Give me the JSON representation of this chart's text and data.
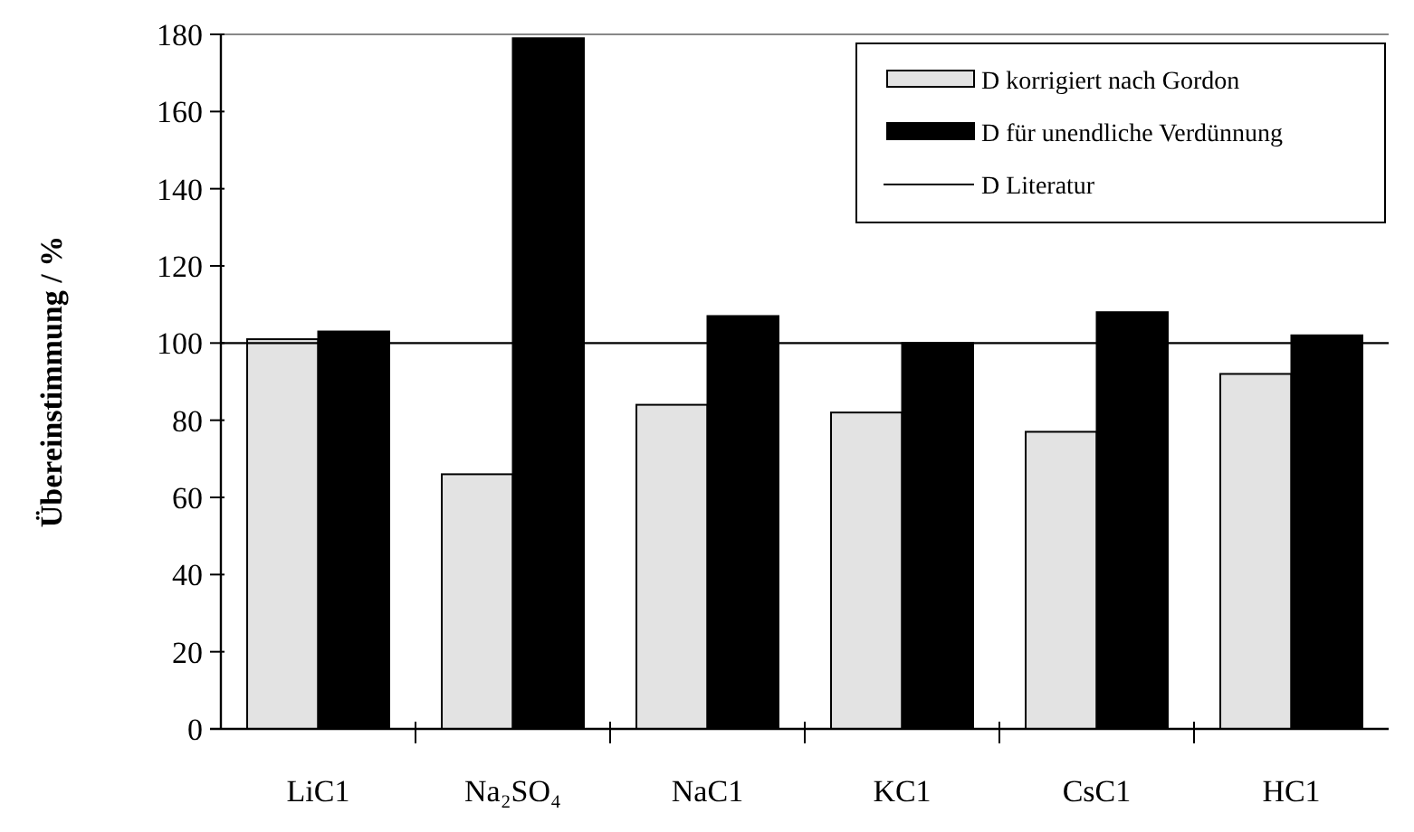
{
  "chart_data": {
    "type": "bar",
    "ylabel": "Übereinstimmung / %",
    "categories": [
      "LiC1",
      "Na₂SO₄",
      "NaC1",
      "KC1",
      "CsC1",
      "HC1"
    ],
    "series": [
      {
        "name": "D korrigiert nach Gordon",
        "color": "#e3e3e3",
        "values": [
          101,
          66,
          84,
          82,
          77,
          92
        ]
      },
      {
        "name": "D für unendliche Verdünnung",
        "color": "#000000",
        "values": [
          103,
          179,
          107,
          100,
          108,
          102
        ]
      }
    ],
    "ref_lines": [
      {
        "axis": "y",
        "value": 100,
        "label": "D Literatur",
        "color": "#000000"
      }
    ],
    "ylim": [
      0,
      180
    ],
    "yticks": [
      0,
      20,
      40,
      60,
      80,
      100,
      120,
      140,
      160,
      180
    ],
    "legend": "top right",
    "grid": false
  }
}
